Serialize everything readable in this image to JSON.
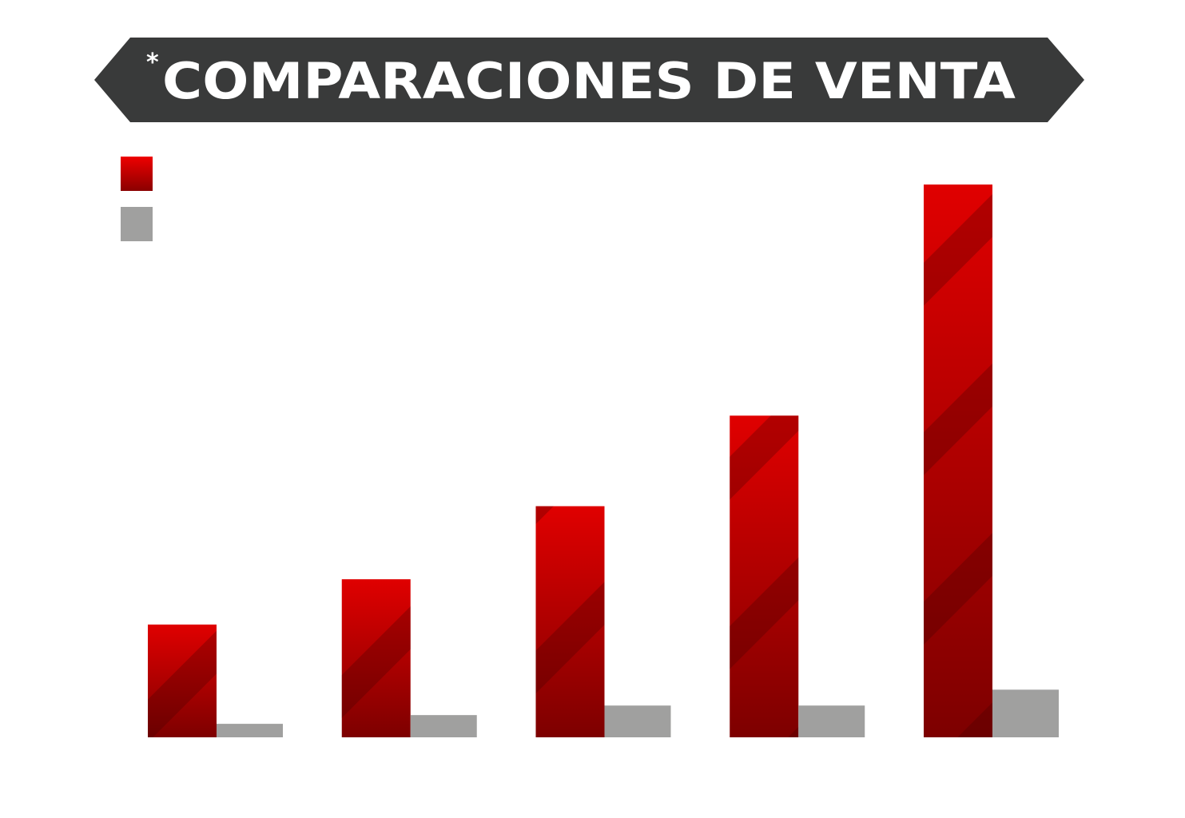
{
  "chart_data": {
    "type": "bar",
    "title": "COMPARACIONES DE VENTA",
    "title_prefix": "*",
    "categories": [
      "",
      "",
      "",
      "",
      ""
    ],
    "series": [
      {
        "values": [
          142,
          199,
          291,
          405,
          696
        ],
        "color": "#cc0000"
      },
      {
        "values": [
          17,
          28,
          40,
          40,
          60
        ],
        "color": "#a0a09f"
      }
    ],
    "ylim": [
      0,
      700
    ],
    "grid": false,
    "legend_position": "top-left",
    "banner_color": "#393a3a"
  }
}
